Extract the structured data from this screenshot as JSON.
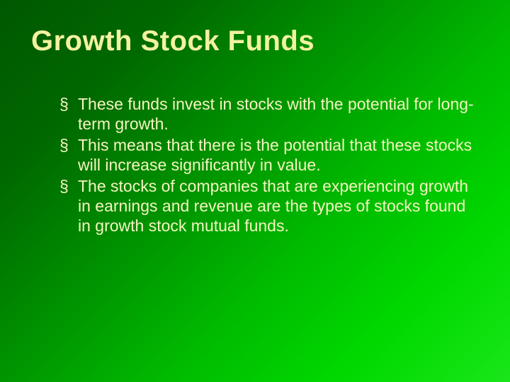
{
  "slide": {
    "title": "Growth Stock Funds",
    "bullets": [
      "These funds invest in stocks with the potential for long-term growth.",
      "This means that there is the potential that these stocks will increase significantly in value.",
      "The stocks of companies that are experiencing growth in earnings and revenue are the types of stocks found in growth stock mutual funds."
    ],
    "style": {
      "title_color": "#f2f2a0",
      "body_color": "#f5f5c0",
      "title_fontsize": 40,
      "body_fontsize": 23,
      "background_gradient_start": "#005800",
      "background_gradient_end": "#19e619",
      "bullet_marker": "§"
    }
  }
}
